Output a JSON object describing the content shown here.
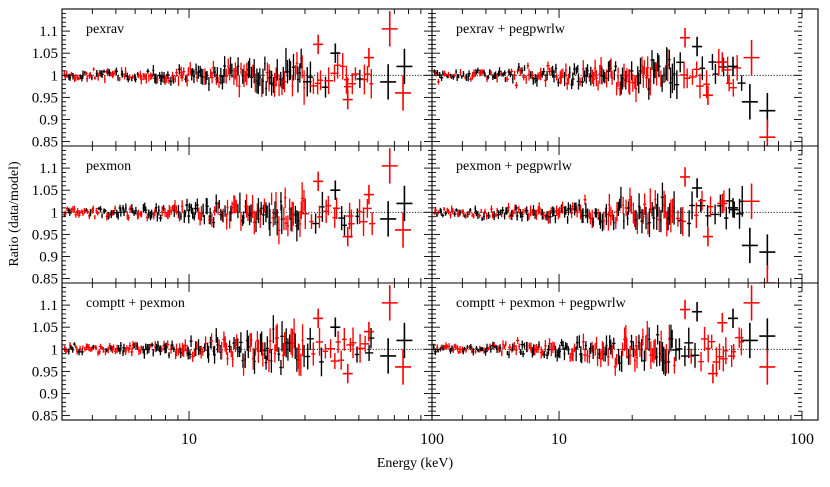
{
  "figure": {
    "xlabel": "Energy (keV)",
    "ylabel": "Ratio (data/model)"
  },
  "colors": {
    "series_a": "#000000",
    "series_b": "#ff0000",
    "reference_line": "#000000"
  },
  "chart_data": {
    "type": "scatter",
    "layout": "3 rows x 2 columns, shared axes",
    "x_axis": {
      "scale": "log",
      "range": [
        3,
        100
      ],
      "tick_labels": [
        "10",
        "100"
      ],
      "label": "Energy (keV)"
    },
    "y_axis": {
      "range": [
        0.84,
        1.15
      ],
      "tick_labels": [
        "0.85",
        "0.9",
        "0.95",
        "1",
        "1.05",
        "1.1"
      ],
      "label": "Ratio (data/model)"
    },
    "reference_line": {
      "y": 1.0,
      "style": "dotted"
    },
    "panels": [
      {
        "label": "pexrav",
        "row": 0,
        "col": 0,
        "red_hi": [
          [
            34,
            1.07
          ],
          [
            55,
            1.04
          ],
          [
            67,
            1.105
          ]
        ],
        "red_lo": [
          [
            45,
            0.945
          ],
          [
            76,
            0.96
          ]
        ],
        "black_hi": [
          [
            40,
            1.05
          ],
          [
            77,
            1.02
          ]
        ],
        "black_lo": [
          [
            66,
            0.985
          ]
        ]
      },
      {
        "label": "pexrav + pegpwrlw",
        "row": 0,
        "col": 1,
        "red_hi": [
          [
            33,
            1.085
          ],
          [
            47,
            1.03
          ],
          [
            62,
            1.04
          ]
        ],
        "red_lo": [
          [
            41,
            0.955
          ],
          [
            72,
            0.86
          ]
        ],
        "black_hi": [
          [
            37,
            1.065
          ],
          [
            52,
            1.02
          ]
        ],
        "black_lo": [
          [
            61,
            0.94
          ],
          [
            72,
            0.92
          ]
        ]
      },
      {
        "label": "pexmon",
        "row": 1,
        "col": 0,
        "red_hi": [
          [
            34,
            1.07
          ],
          [
            55,
            1.04
          ],
          [
            67,
            1.105
          ]
        ],
        "red_lo": [
          [
            45,
            0.945
          ],
          [
            76,
            0.96
          ]
        ],
        "black_hi": [
          [
            40,
            1.05
          ],
          [
            77,
            1.02
          ]
        ],
        "black_lo": [
          [
            66,
            0.985
          ]
        ]
      },
      {
        "label": "pexmon + pegpwrlw",
        "row": 1,
        "col": 1,
        "red_hi": [
          [
            33,
            1.08
          ],
          [
            47,
            1.02
          ],
          [
            62,
            1.025
          ]
        ],
        "red_lo": [
          [
            41,
            0.945
          ],
          [
            72,
            0.84
          ]
        ],
        "black_hi": [
          [
            37,
            1.055
          ],
          [
            52,
            1.01
          ]
        ],
        "black_lo": [
          [
            61,
            0.925
          ],
          [
            72,
            0.91
          ]
        ]
      },
      {
        "label": "comptt + pexmon",
        "row": 2,
        "col": 0,
        "red_hi": [
          [
            34,
            1.07
          ],
          [
            55,
            1.04
          ],
          [
            67,
            1.105
          ]
        ],
        "red_lo": [
          [
            45,
            0.945
          ],
          [
            76,
            0.96
          ]
        ],
        "black_hi": [
          [
            40,
            1.05
          ],
          [
            77,
            1.02
          ]
        ],
        "black_lo": [
          [
            66,
            0.985
          ]
        ]
      },
      {
        "label": "comptt + pexmon + pegpwrlw",
        "row": 2,
        "col": 1,
        "red_hi": [
          [
            33,
            1.09
          ],
          [
            47,
            1.06
          ],
          [
            62,
            1.105
          ]
        ],
        "red_lo": [
          [
            43,
            0.945
          ],
          [
            72,
            0.96
          ]
        ],
        "black_hi": [
          [
            37,
            1.085
          ],
          [
            52,
            1.07
          ],
          [
            72,
            1.03
          ]
        ],
        "black_lo": [
          [
            61,
            1.02
          ]
        ]
      }
    ]
  }
}
